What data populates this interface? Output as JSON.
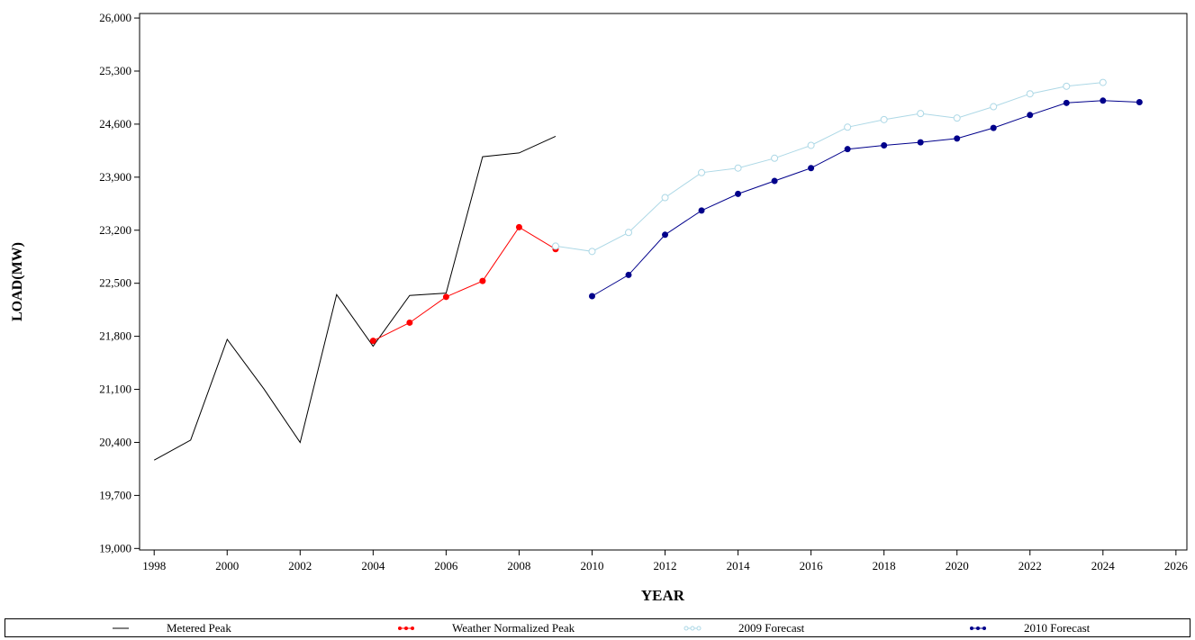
{
  "chart_data": {
    "type": "line",
    "title": "",
    "xlabel": "YEAR",
    "ylabel": "LOAD(MW)",
    "xlim": [
      1997.6,
      2026.3
    ],
    "ylim": [
      18980,
      26060
    ],
    "x_ticks": [
      1998,
      2000,
      2002,
      2004,
      2006,
      2008,
      2010,
      2012,
      2014,
      2016,
      2018,
      2020,
      2022,
      2024,
      2026
    ],
    "y_ticks": [
      19000,
      19700,
      20400,
      21100,
      21800,
      22500,
      23200,
      23900,
      24600,
      25300,
      26000
    ],
    "y_tick_labels": [
      "19,000",
      "19,700",
      "20,400",
      "21,100",
      "21,800",
      "22,500",
      "23,200",
      "23,900",
      "24,600",
      "25,300",
      "26,000"
    ],
    "grid": false,
    "legend_placement": "bottom",
    "series": [
      {
        "name": "Metered Peak",
        "color": "#000000",
        "marker": "none",
        "x": [
          1998,
          1999,
          2000,
          2001,
          2002,
          2003,
          2004,
          2005,
          2006,
          2007,
          2008,
          2009
        ],
        "y": [
          20165,
          20430,
          21760,
          21110,
          20400,
          22350,
          21670,
          22340,
          22370,
          24170,
          24220,
          24440
        ]
      },
      {
        "name": "Weather Normalized Peak",
        "color": "#ff0000",
        "marker": "filled-circle",
        "x": [
          2004,
          2005,
          2006,
          2007,
          2008,
          2009
        ],
        "y": [
          21740,
          21980,
          22320,
          22530,
          23240,
          22950
        ]
      },
      {
        "name": "2009 Forecast",
        "color": "#add8e6",
        "marker": "open-circle",
        "x": [
          2009,
          2010,
          2011,
          2012,
          2013,
          2014,
          2015,
          2016,
          2017,
          2018,
          2019,
          2020,
          2021,
          2022,
          2023,
          2024
        ],
        "y": [
          22990,
          22920,
          23170,
          23630,
          23960,
          24020,
          24150,
          24320,
          24560,
          24660,
          24740,
          24680,
          24830,
          25000,
          25100,
          25150
        ]
      },
      {
        "name": "2010 Forecast",
        "color": "#00008b",
        "marker": "filled-circle",
        "x": [
          2010,
          2011,
          2012,
          2013,
          2014,
          2015,
          2016,
          2017,
          2018,
          2019,
          2020,
          2021,
          2022,
          2023,
          2024,
          2025
        ],
        "y": [
          22330,
          22610,
          23140,
          23460,
          23680,
          23850,
          24020,
          24270,
          24320,
          24360,
          24410,
          24550,
          24720,
          24880,
          24910,
          24890
        ]
      }
    ]
  }
}
